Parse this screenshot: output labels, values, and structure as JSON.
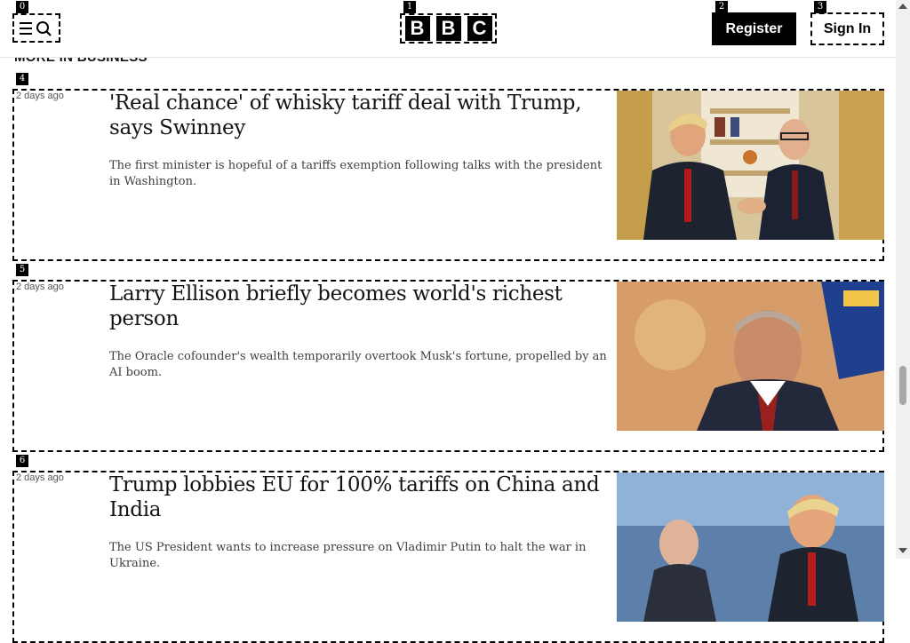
{
  "header": {
    "menu_marker": "0",
    "logo_marker": "1",
    "logo_letters": [
      "B",
      "B",
      "C"
    ],
    "register_marker": "2",
    "register_label": "Register",
    "signin_marker": "3",
    "signin_label": "Sign In"
  },
  "section": {
    "title": "MORE IN BUSINESS"
  },
  "articles": [
    {
      "marker": "4",
      "time": "2 days ago",
      "headline": "'Real chance' of whisky tariff deal with Trump, says Swinney",
      "summary": "The first minister is hopeful of a tariffs exemption following talks with the president in Washington."
    },
    {
      "marker": "5",
      "time": "2 days ago",
      "headline": "Larry Ellison briefly becomes world's richest person",
      "summary": "The Oracle cofounder's wealth temporarily overtook Musk's fortune, propelled by an AI boom."
    },
    {
      "marker": "6",
      "time": "2 days ago",
      "headline": "Trump lobbies EU for 100% tariffs on China and India",
      "summary": "The US President wants to increase pressure on Vladimir Putin to halt the war in Ukraine."
    }
  ],
  "icons": {
    "menu": "hamburger-search-icon",
    "scroll_up": "arrow-up-icon",
    "scroll_down": "arrow-down-icon"
  }
}
